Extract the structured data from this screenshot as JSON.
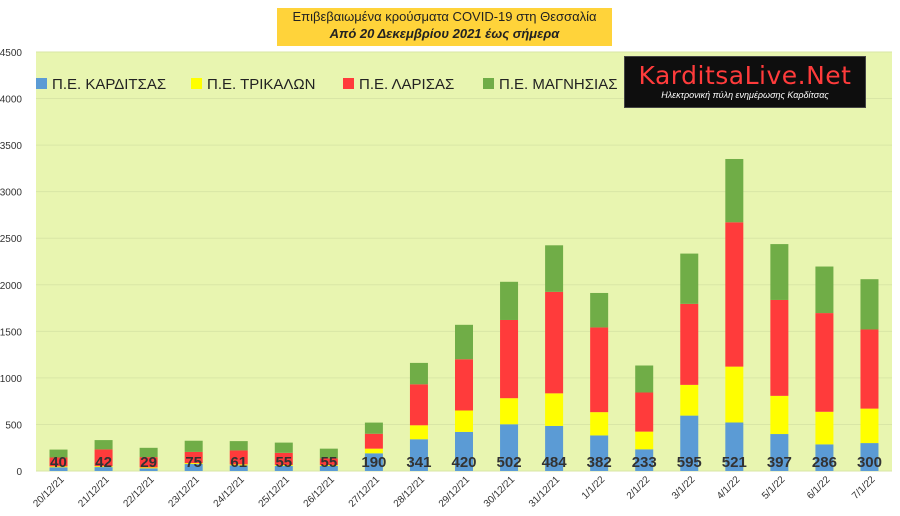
{
  "title": {
    "line1": "Επιβεβαιωμένα κρούσματα COVID-19 στη Θεσσαλία",
    "line2": "Από 20 Δεκεμβρίου 2021 έως σήμερα"
  },
  "logo": {
    "brand": "KarditsaLive.Net",
    "tagline": "Ηλεκτρονική πύλη ενημέρωσης Καρδίτσας"
  },
  "colors": {
    "plot_bg": "#e8f5b0",
    "karditsa": "#5b9bd5",
    "trikala": "#ffff00",
    "larisa": "#ff3b3b",
    "magnisia": "#70ad47",
    "grid": "#d9e6a6"
  },
  "chart_data": {
    "type": "bar",
    "stacked": true,
    "categories": [
      "20/12/21",
      "21/12/21",
      "22/12/21",
      "23/12/21",
      "24/12/21",
      "25/12/21",
      "26/12/21",
      "27/12/21",
      "28/12/21",
      "29/12/21",
      "30/12/21",
      "31/12/21",
      "1/1/22",
      "2/1/22",
      "3/1/22",
      "4/1/22",
      "5/1/22",
      "6/1/22",
      "7/1/22"
    ],
    "series": [
      {
        "name": "Π.Ε. ΚΑΡΔΙΤΣΑΣ",
        "values": [
          40,
          42,
          29,
          75,
          61,
          55,
          55,
          190,
          341,
          420,
          502,
          484,
          382,
          233,
          595,
          521,
          397,
          286,
          300
        ]
      },
      {
        "name": "Π.Ε. ΤΡΙΚΑΛΩΝ",
        "values": [
          10,
          10,
          10,
          10,
          10,
          10,
          10,
          50,
          150,
          230,
          280,
          350,
          250,
          190,
          330,
          600,
          410,
          350,
          370
        ]
      },
      {
        "name": "Π.Ε. ΛΑΡΙΣΑΣ",
        "values": [
          95,
          180,
          110,
          120,
          150,
          130,
          70,
          160,
          440,
          550,
          840,
          1090,
          910,
          420,
          870,
          1550,
          1030,
          1060,
          850
        ]
      },
      {
        "name": "Π.Ε. ΜΑΓΝΗΣΙΑΣ",
        "values": [
          85,
          100,
          100,
          120,
          100,
          110,
          105,
          120,
          230,
          370,
          410,
          500,
          370,
          290,
          540,
          680,
          600,
          500,
          540
        ]
      }
    ],
    "data_labels": [
      "40",
      "42",
      "29",
      "75",
      "61",
      "55",
      "55",
      "190",
      "341",
      "420",
      "502",
      "484",
      "382",
      "233",
      "595",
      "521",
      "397",
      "286",
      "300"
    ],
    "ylim": [
      0,
      4500
    ],
    "yticks": [
      0,
      500,
      1000,
      1500,
      2000,
      2500,
      3000,
      3500,
      4000,
      4500
    ],
    "grid": true,
    "legend_position": "top-left"
  }
}
